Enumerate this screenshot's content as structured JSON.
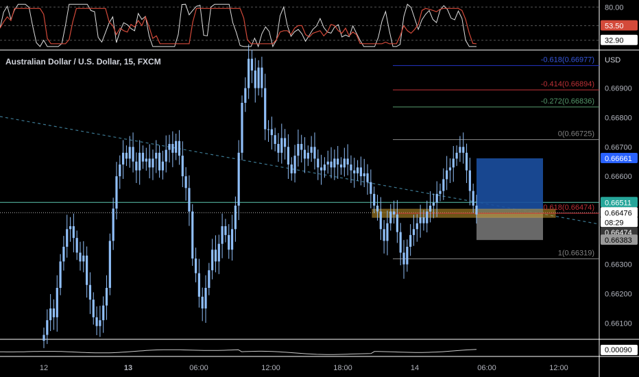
{
  "header": {
    "title": "Australian Dollar / U.S. Dollar, 15, FXCM",
    "currency": "USD"
  },
  "colors": {
    "candle": "#90bff9",
    "rsi": "#e0e0e0",
    "rsi_ma": "#d44a3a",
    "trend": "#3d7a94",
    "fib_top": "#2536c8",
    "fib_414": "#c8343a",
    "fib_272": "#5aa071",
    "fib_0": "#8a8a8a",
    "fib_618": "#c8343a",
    "fib_1": "#8a8a8a",
    "h_line": "#5cc8b0",
    "zone": "#c89a2a",
    "target": "#1b4fa0",
    "stop": "#7a7a7a"
  },
  "chart_data": {
    "type": "candlestick",
    "title": "Australian Dollar / U.S. Dollar, 15, FXCM",
    "ylim": [
      0.66045,
      0.67025
    ],
    "y_ticks": [
      "0.66900",
      "0.66800",
      "0.66700",
      "0.66600",
      "0.66500",
      "0.66400",
      "0.66300",
      "0.66200",
      "0.66100"
    ],
    "x_ticks": [
      "12",
      "13",
      "06:00",
      "12:00",
      "18:00",
      "14",
      "06:00",
      "12:00"
    ],
    "bold_x_ticks": [
      "13"
    ],
    "price_badges": [
      {
        "value": "0.66661",
        "kind": "blue"
      },
      {
        "value": "0.66511",
        "kind": "green"
      },
      {
        "value": "0.66476",
        "kind": "current"
      },
      {
        "value": "08:29",
        "kind": "timer"
      },
      {
        "value": "0.66474",
        "kind": "dark"
      },
      {
        "value": "0.66383",
        "kind": "gray"
      }
    ],
    "fib_levels": [
      {
        "label": "-0.618(0.66977)",
        "price": 0.66977,
        "colorKey": "fib_top"
      },
      {
        "label": "-0.414(0.66894)",
        "price": 0.66894,
        "colorKey": "fib_414"
      },
      {
        "label": "-0.272(0.66836)",
        "price": 0.66836,
        "colorKey": "fib_272"
      },
      {
        "label": "0(0.66725)",
        "price": 0.66725,
        "colorKey": "fib_0"
      },
      {
        "label": "0.618(0.66474)",
        "price": 0.66474,
        "colorKey": "fib_618"
      },
      {
        "label": "1(0.66319)",
        "price": 0.66319,
        "colorKey": "fib_1"
      }
    ],
    "horizontal_line": 0.66511,
    "current_price": 0.66476,
    "position": {
      "entry": 0.66476,
      "target": 0.66661,
      "stop": 0.66383
    },
    "candles_close": [
      0.6606,
      0.6611,
      0.6615,
      0.6612,
      0.6622,
      0.6631,
      0.6636,
      0.6642,
      0.6643,
      0.6639,
      0.6634,
      0.6631,
      0.6633,
      0.6623,
      0.6618,
      0.6612,
      0.6609,
      0.6611,
      0.6616,
      0.6622,
      0.6638,
      0.6649,
      0.666,
      0.6664,
      0.6668,
      0.6666,
      0.667,
      0.6665,
      0.6662,
      0.6668,
      0.6665,
      0.6666,
      0.6663,
      0.6666,
      0.6668,
      0.6662,
      0.6665,
      0.6669,
      0.6671,
      0.6668,
      0.6672,
      0.6667,
      0.666,
      0.6656,
      0.6648,
      0.6632,
      0.6627,
      0.6619,
      0.6615,
      0.6622,
      0.6628,
      0.6635,
      0.6631,
      0.6637,
      0.6643,
      0.664,
      0.6635,
      0.6642,
      0.665,
      0.6668,
      0.6685,
      0.669,
      0.67,
      0.6696,
      0.669,
      0.6697,
      0.669,
      0.6676,
      0.6676,
      0.6674,
      0.6671,
      0.6668,
      0.6673,
      0.667,
      0.6664,
      0.6661,
      0.6667,
      0.6671,
      0.6669,
      0.6666,
      0.6668,
      0.667,
      0.6666,
      0.6663,
      0.6662,
      0.6664,
      0.6665,
      0.6663,
      0.6666,
      0.6664,
      0.6663,
      0.6666,
      0.6664,
      0.6662,
      0.6661,
      0.6663,
      0.666,
      0.6661,
      0.6658,
      0.6654,
      0.665,
      0.6648,
      0.6642,
      0.6638,
      0.6644,
      0.6648,
      0.6647,
      0.6641,
      0.6634,
      0.663,
      0.6636,
      0.664,
      0.6642,
      0.6644,
      0.6646,
      0.6644,
      0.6648,
      0.665,
      0.6651,
      0.6654,
      0.6655,
      0.6659,
      0.6662,
      0.6663,
      0.6666,
      0.6668,
      0.667,
      0.6668,
      0.6662,
      0.6655,
      0.665,
      0.6647
    ],
    "rsi": {
      "levels": [
        "80.00",
        "53.50",
        "32.90"
      ],
      "ylim": [
        20,
        90
      ]
    },
    "lower_indicator": {
      "value": "0.00090"
    }
  }
}
